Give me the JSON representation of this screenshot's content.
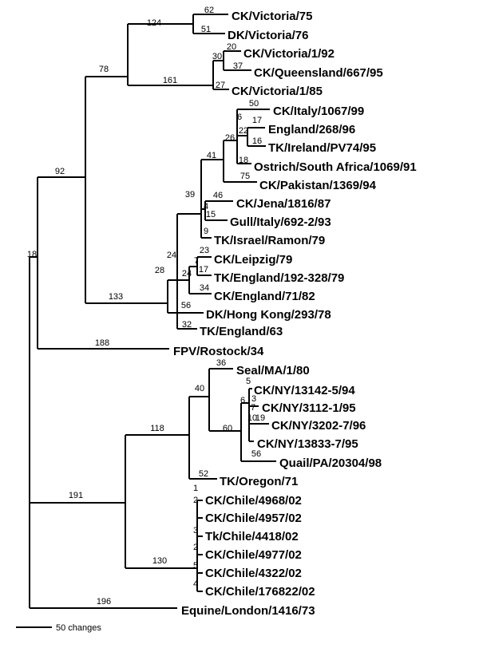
{
  "leaves": [
    "CK/Victoria/75",
    "DK/Victoria/76",
    "CK/Victoria/1/92",
    "CK/Queensland/667/95",
    "CK/Victoria/1/85",
    "CK/Italy/1067/99",
    "England/268/96",
    "TK/Ireland/PV74/95",
    "Ostrich/South Africa/1069/91",
    "CK/Pakistan/1369/94",
    "CK/Jena/1816/87",
    "Gull/Italy/692-2/93",
    "TK/Israel/Ramon/79",
    "CK/Leipzig/79",
    "TK/England/192-328/79",
    "CK/England/71/82",
    "DK/Hong Kong/293/78",
    "TK/England/63",
    "FPV/Rostock/34",
    "Seal/MA/1/80",
    "CK/NY/13142-5/94",
    "CK/NY/3112-1/95",
    "CK/NY/3202-7/96",
    "CK/NY/13833-7/95",
    "Quail/PA/20304/98",
    "TK/Oregon/71",
    "CK/Chile/4968/02",
    "CK/Chile/4957/02",
    "Tk/Chile/4418/02",
    "CK/Chile/4977/02",
    "CK/Chile/4322/02",
    "CK/Chile/176822/02",
    "Equine/London/1416/73"
  ],
  "branch_labels": [
    124,
    62,
    51,
    78,
    30,
    20,
    37,
    161,
    27,
    92,
    50,
    6,
    17,
    22,
    16,
    26,
    18,
    41,
    75,
    39,
    46,
    4,
    15,
    9,
    24,
    23,
    7,
    17,
    24,
    34,
    28,
    56,
    133,
    32,
    188,
    18,
    36,
    40,
    6,
    5,
    3,
    7,
    19,
    10,
    60,
    56,
    118,
    52,
    191,
    1,
    2,
    3,
    2,
    5,
    4,
    130,
    196
  ],
  "scale_label": "50 changes"
}
